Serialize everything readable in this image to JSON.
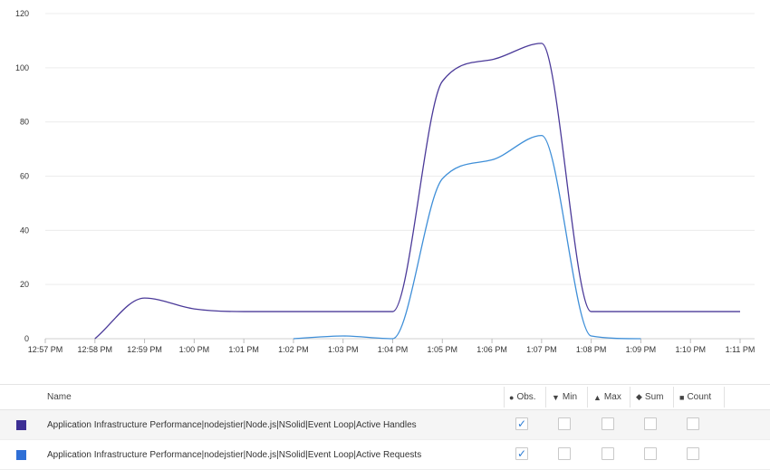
{
  "chart_data": {
    "type": "line",
    "x_ticks": [
      "12:57 PM",
      "12:58 PM",
      "12:59 PM",
      "1:00 PM",
      "1:01 PM",
      "1:02 PM",
      "1:03 PM",
      "1:04 PM",
      "1:05 PM",
      "1:06 PM",
      "1:07 PM",
      "1:08 PM",
      "1:09 PM",
      "1:10 PM",
      "1:11 PM"
    ],
    "y_ticks": [
      0,
      20,
      40,
      60,
      80,
      100,
      120
    ],
    "ylim": [
      0,
      120
    ],
    "grid": true,
    "series": [
      {
        "name": "Application Infrastructure Performance|nodejstier|Node.js|NSolid|Event Loop|Active Handles",
        "color": "#4b3a99",
        "x": [
          "12:58 PM",
          "12:59 PM",
          "1:00 PM",
          "1:01 PM",
          "1:02 PM",
          "1:03 PM",
          "1:04 PM",
          "1:05 PM",
          "1:06 PM",
          "1:07 PM",
          "1:08 PM",
          "1:09 PM",
          "1:10 PM",
          "1:11 PM"
        ],
        "values": [
          0,
          15,
          11,
          10,
          10,
          10,
          10,
          95,
          103,
          109,
          10,
          10,
          10,
          10
        ]
      },
      {
        "name": "Application Infrastructure Performance|nodejstier|Node.js|NSolid|Event Loop|Active Requests",
        "color": "#3f8fd8",
        "x": [
          "1:02 PM",
          "1:03 PM",
          "1:04 PM",
          "1:05 PM",
          "1:06 PM",
          "1:07 PM",
          "1:08 PM",
          "1:09 PM"
        ],
        "values": [
          0,
          1,
          0,
          59,
          66,
          75,
          1,
          0
        ]
      }
    ]
  },
  "legend": {
    "headers": {
      "name": "Name",
      "obs": "Obs.",
      "min": "Min",
      "max": "Max",
      "sum": "Sum",
      "count": "Count"
    },
    "header_icons": {
      "obs": "●",
      "min": "▼",
      "max": "▲",
      "sum": "◆",
      "count": "■"
    },
    "rows": [
      {
        "name": "Application Infrastructure Performance|nodejstier|Node.js|NSolid|Event Loop|Active Handles",
        "color": "#3d2f94",
        "obs": true,
        "min": false,
        "max": false,
        "sum": false,
        "count": false
      },
      {
        "name": "Application Infrastructure Performance|nodejstier|Node.js|NSolid|Event Loop|Active Requests",
        "color": "#2f6fd6",
        "obs": true,
        "min": false,
        "max": false,
        "sum": false,
        "count": false
      }
    ],
    "check_glyph": "✓"
  }
}
